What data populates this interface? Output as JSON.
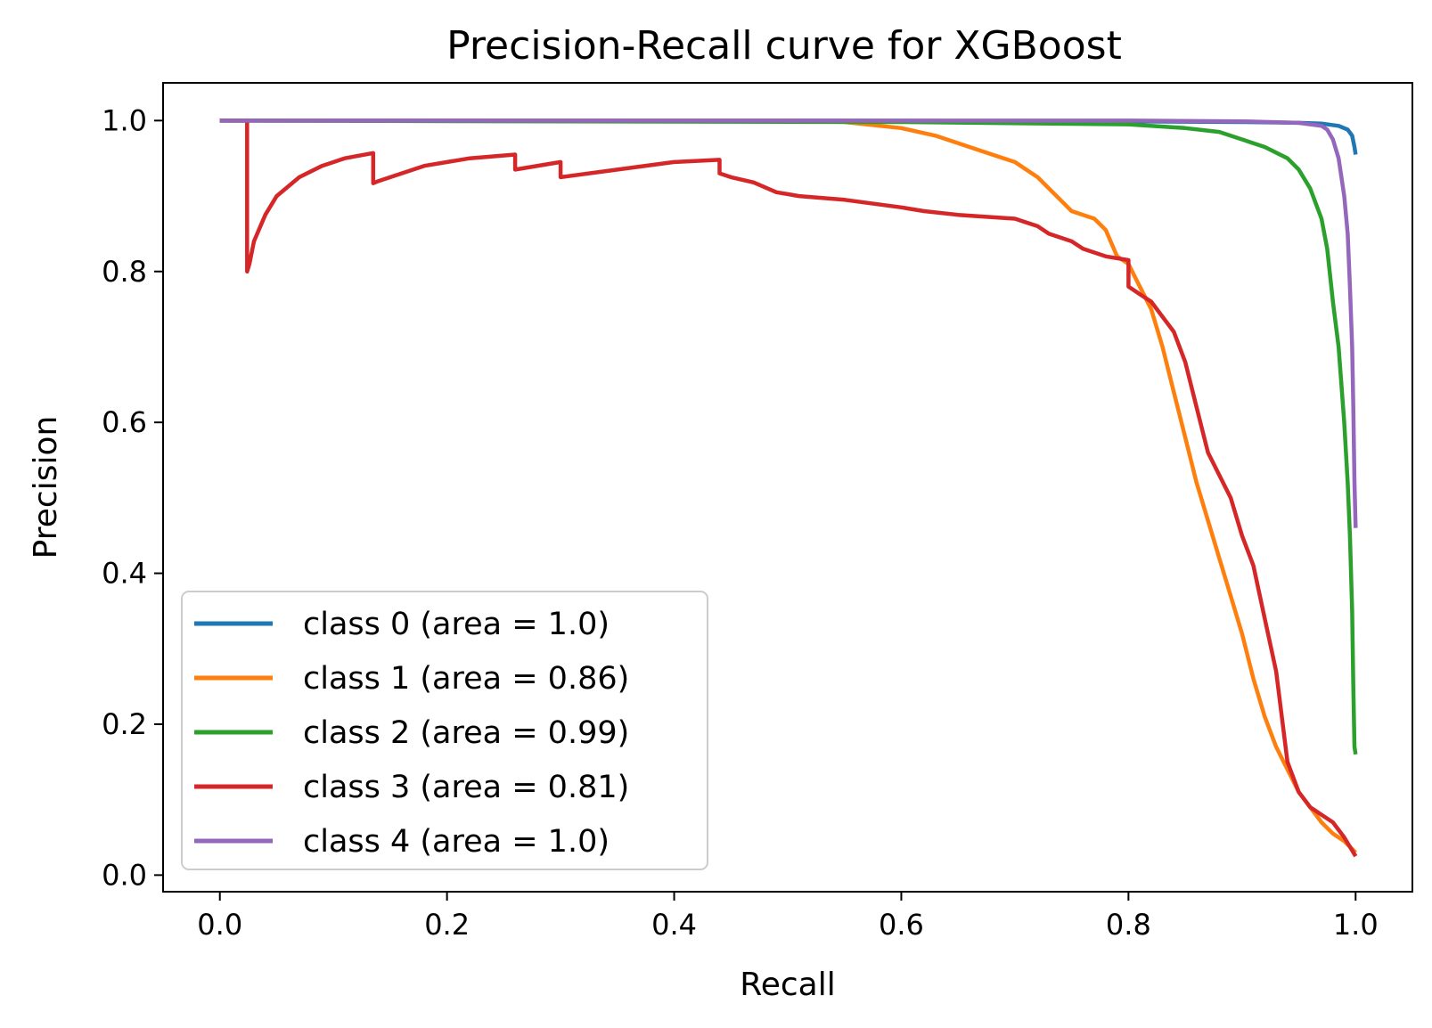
{
  "chart_data": {
    "type": "line",
    "title": "Precision-Recall curve for XGBoost",
    "xlabel": "Recall",
    "ylabel": "Precision",
    "xlim": [
      -0.05,
      1.05
    ],
    "ylim": [
      -0.022,
      1.05
    ],
    "xticks": [
      0.0,
      0.2,
      0.4,
      0.6,
      0.8,
      1.0
    ],
    "yticks": [
      0.0,
      0.2,
      0.4,
      0.6,
      0.8,
      1.0
    ],
    "xtick_labels": [
      "0.0",
      "0.2",
      "0.4",
      "0.6",
      "0.8",
      "1.0"
    ],
    "ytick_labels": [
      "0.0",
      "0.2",
      "0.4",
      "0.6",
      "0.8",
      "1.0"
    ],
    "grid": false,
    "legend_position": "lower-left",
    "series": [
      {
        "name": "class 0 (area = 1.0)",
        "color": "#1f77b4",
        "x": [
          0.0,
          0.5,
          0.8,
          0.9,
          0.95,
          0.97,
          0.985,
          0.993,
          0.997,
          0.999,
          1.0
        ],
        "y": [
          1.0,
          1.0,
          0.999,
          0.998,
          0.997,
          0.996,
          0.993,
          0.988,
          0.98,
          0.965,
          0.955
        ]
      },
      {
        "name": "class 1 (area = 0.86)",
        "color": "#ff7f0e",
        "x": [
          0.0,
          0.5,
          0.55,
          0.6,
          0.63,
          0.66,
          0.68,
          0.7,
          0.72,
          0.74,
          0.75,
          0.77,
          0.78,
          0.79,
          0.8,
          0.805,
          0.81,
          0.82,
          0.83,
          0.84,
          0.85,
          0.86,
          0.87,
          0.88,
          0.89,
          0.9,
          0.91,
          0.92,
          0.93,
          0.94,
          0.95,
          0.96,
          0.97,
          0.98,
          0.99,
          1.0
        ],
        "y": [
          1.0,
          1.0,
          0.998,
          0.99,
          0.98,
          0.965,
          0.955,
          0.945,
          0.925,
          0.895,
          0.88,
          0.87,
          0.855,
          0.82,
          0.81,
          0.795,
          0.78,
          0.75,
          0.7,
          0.64,
          0.58,
          0.52,
          0.47,
          0.42,
          0.37,
          0.32,
          0.26,
          0.21,
          0.17,
          0.14,
          0.11,
          0.09,
          0.07,
          0.055,
          0.045,
          0.03
        ]
      },
      {
        "name": "class 2 (area = 0.99)",
        "color": "#2ca02c",
        "x": [
          0.0,
          0.6,
          0.8,
          0.85,
          0.88,
          0.9,
          0.92,
          0.94,
          0.95,
          0.96,
          0.97,
          0.975,
          0.98,
          0.985,
          0.99,
          0.993,
          0.995,
          0.997,
          0.998,
          0.999,
          1.0
        ],
        "y": [
          1.0,
          0.998,
          0.995,
          0.99,
          0.985,
          0.975,
          0.965,
          0.95,
          0.935,
          0.91,
          0.87,
          0.83,
          0.76,
          0.7,
          0.6,
          0.52,
          0.45,
          0.35,
          0.25,
          0.17,
          0.16
        ]
      },
      {
        "name": "class 3 (area = 0.81)",
        "color": "#d62728",
        "x": [
          0.0,
          0.024,
          0.024,
          0.026,
          0.03,
          0.04,
          0.05,
          0.07,
          0.09,
          0.11,
          0.135,
          0.135,
          0.14,
          0.18,
          0.22,
          0.26,
          0.26,
          0.3,
          0.3,
          0.35,
          0.4,
          0.44,
          0.44,
          0.45,
          0.47,
          0.49,
          0.51,
          0.55,
          0.6,
          0.62,
          0.65,
          0.7,
          0.72,
          0.73,
          0.75,
          0.76,
          0.78,
          0.8,
          0.8,
          0.81,
          0.82,
          0.83,
          0.84,
          0.85,
          0.86,
          0.87,
          0.88,
          0.89,
          0.9,
          0.91,
          0.92,
          0.93,
          0.94,
          0.95,
          0.96,
          0.97,
          0.98,
          0.99,
          1.0
        ],
        "y": [
          1.0,
          1.0,
          0.8,
          0.81,
          0.84,
          0.875,
          0.9,
          0.925,
          0.94,
          0.95,
          0.957,
          0.917,
          0.92,
          0.94,
          0.95,
          0.955,
          0.935,
          0.945,
          0.925,
          0.935,
          0.945,
          0.948,
          0.93,
          0.925,
          0.918,
          0.905,
          0.9,
          0.895,
          0.885,
          0.88,
          0.875,
          0.87,
          0.86,
          0.85,
          0.84,
          0.83,
          0.82,
          0.815,
          0.78,
          0.77,
          0.76,
          0.74,
          0.72,
          0.68,
          0.62,
          0.56,
          0.53,
          0.5,
          0.45,
          0.41,
          0.34,
          0.27,
          0.15,
          0.11,
          0.09,
          0.08,
          0.07,
          0.05,
          0.025
        ]
      },
      {
        "name": "class 4 (area = 1.0)",
        "color": "#9467bd",
        "x": [
          0.0,
          0.5,
          0.8,
          0.9,
          0.95,
          0.97,
          0.975,
          0.98,
          0.985,
          0.99,
          0.993,
          0.995,
          0.997,
          0.998,
          0.999,
          1.0
        ],
        "y": [
          1.0,
          1.0,
          1.0,
          0.999,
          0.997,
          0.993,
          0.988,
          0.975,
          0.95,
          0.9,
          0.85,
          0.78,
          0.7,
          0.62,
          0.52,
          0.46
        ]
      }
    ]
  }
}
